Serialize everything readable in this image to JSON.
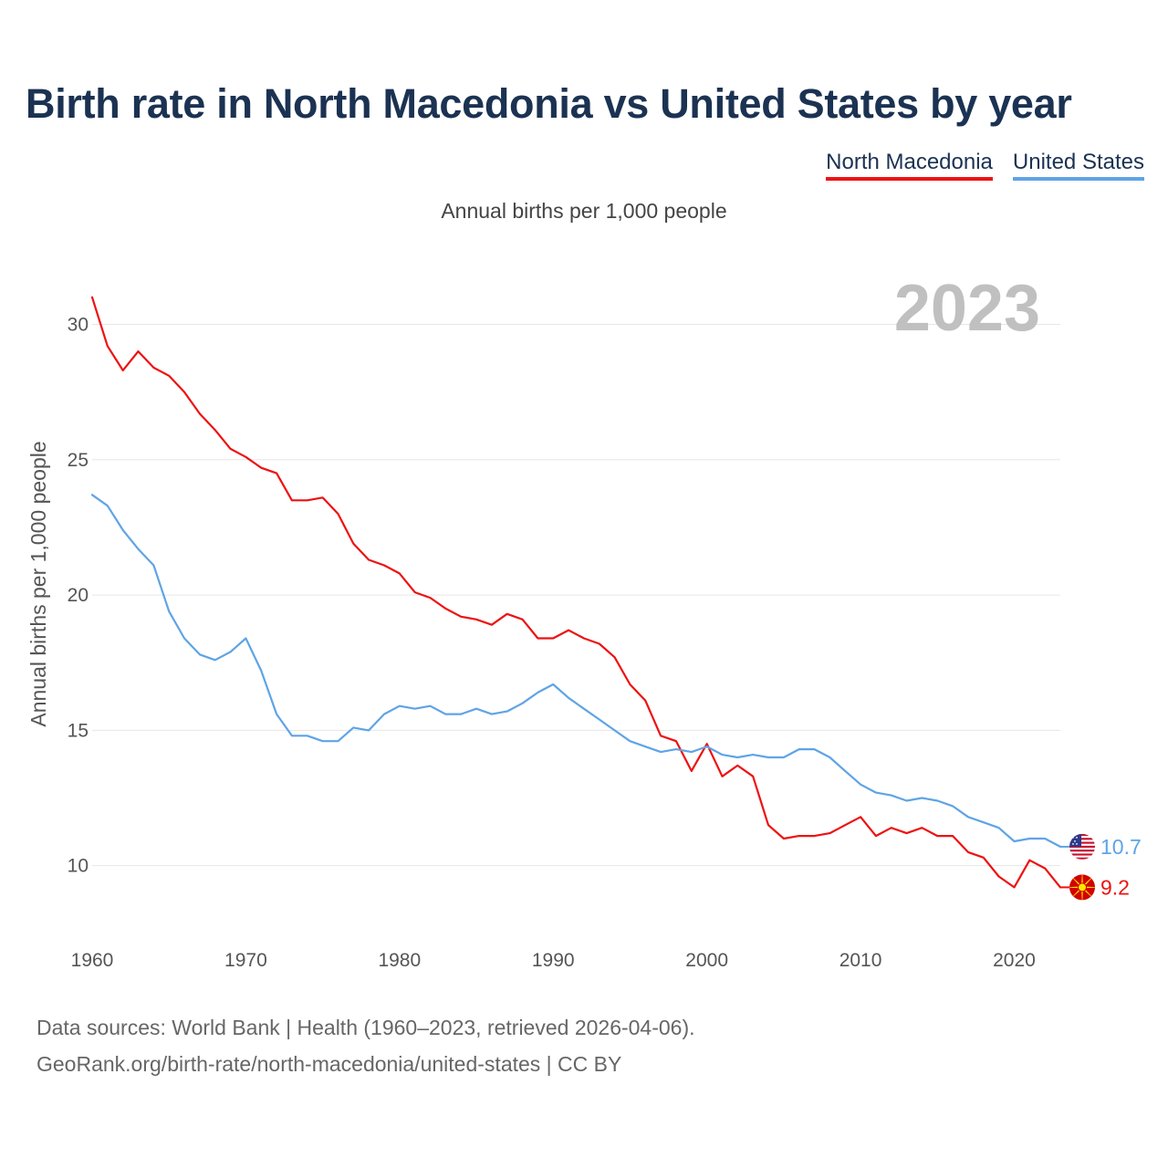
{
  "title": "Birth rate in North Macedonia vs United States by year",
  "legend": [
    {
      "label": "North Macedonia",
      "color": "#ee1111"
    },
    {
      "label": "United States",
      "color": "#5ea4e6"
    }
  ],
  "subtitle": "Annual births per 1,000 people",
  "source": {
    "line1": "Data sources: World Bank | Health (1960–2023, retrieved 2026-04-06).",
    "line2": "GeoRank.org/birth-rate/north-macedonia/united-states | CC BY"
  },
  "chart_data": {
    "type": "line",
    "title": "Birth rate in North Macedonia vs United States by year",
    "ylabel": "Annual births per 1,000 people",
    "xlabel": "",
    "xlim": [
      1960,
      2023
    ],
    "ylim": [
      8,
      31.5
    ],
    "year_watermark": "2023",
    "x_ticks": [
      1960,
      1970,
      1980,
      1990,
      2000,
      2010,
      2020
    ],
    "y_ticks": [
      10,
      15,
      20,
      25,
      30
    ],
    "grid": "horizontal",
    "x": [
      1960,
      1961,
      1962,
      1963,
      1964,
      1965,
      1966,
      1967,
      1968,
      1969,
      1970,
      1971,
      1972,
      1973,
      1974,
      1975,
      1976,
      1977,
      1978,
      1979,
      1980,
      1981,
      1982,
      1983,
      1984,
      1985,
      1986,
      1987,
      1988,
      1989,
      1990,
      1991,
      1992,
      1993,
      1994,
      1995,
      1996,
      1997,
      1998,
      1999,
      2000,
      2001,
      2002,
      2003,
      2004,
      2005,
      2006,
      2007,
      2008,
      2009,
      2010,
      2011,
      2012,
      2013,
      2014,
      2015,
      2016,
      2017,
      2018,
      2019,
      2020,
      2021,
      2022,
      2023
    ],
    "series": [
      {
        "name": "North Macedonia",
        "color": "#ee1111",
        "end_label": "9.2",
        "flag_icon": "north-macedonia-flag-icon",
        "values": [
          31.0,
          29.2,
          28.3,
          29.0,
          28.4,
          28.1,
          27.5,
          26.7,
          26.1,
          25.4,
          25.1,
          24.7,
          24.5,
          23.5,
          23.5,
          23.6,
          23.0,
          21.9,
          21.3,
          21.1,
          20.8,
          20.1,
          19.9,
          19.5,
          19.2,
          19.1,
          18.9,
          19.3,
          19.1,
          18.4,
          18.4,
          18.7,
          18.4,
          18.2,
          17.7,
          16.7,
          16.1,
          14.8,
          14.6,
          13.5,
          14.5,
          13.3,
          13.7,
          13.3,
          11.5,
          11.0,
          11.1,
          11.1,
          11.2,
          11.5,
          11.8,
          11.1,
          11.4,
          11.2,
          11.4,
          11.1,
          11.1,
          10.5,
          10.3,
          9.6,
          9.2,
          10.2,
          9.9,
          9.2
        ]
      },
      {
        "name": "United States",
        "color": "#5ea4e6",
        "end_label": "10.7",
        "flag_icon": "united-states-flag-icon",
        "values": [
          23.7,
          23.3,
          22.4,
          21.7,
          21.1,
          19.4,
          18.4,
          17.8,
          17.6,
          17.9,
          18.4,
          17.2,
          15.6,
          14.8,
          14.8,
          14.6,
          14.6,
          15.1,
          15.0,
          15.6,
          15.9,
          15.8,
          15.9,
          15.6,
          15.6,
          15.8,
          15.6,
          15.7,
          16.0,
          16.4,
          16.7,
          16.2,
          15.8,
          15.4,
          15.0,
          14.6,
          14.4,
          14.2,
          14.3,
          14.2,
          14.4,
          14.1,
          14.0,
          14.1,
          14.0,
          14.0,
          14.3,
          14.3,
          14.0,
          13.5,
          13.0,
          12.7,
          12.6,
          12.4,
          12.5,
          12.4,
          12.2,
          11.8,
          11.6,
          11.4,
          10.9,
          11.0,
          11.0,
          10.7
        ]
      }
    ]
  }
}
